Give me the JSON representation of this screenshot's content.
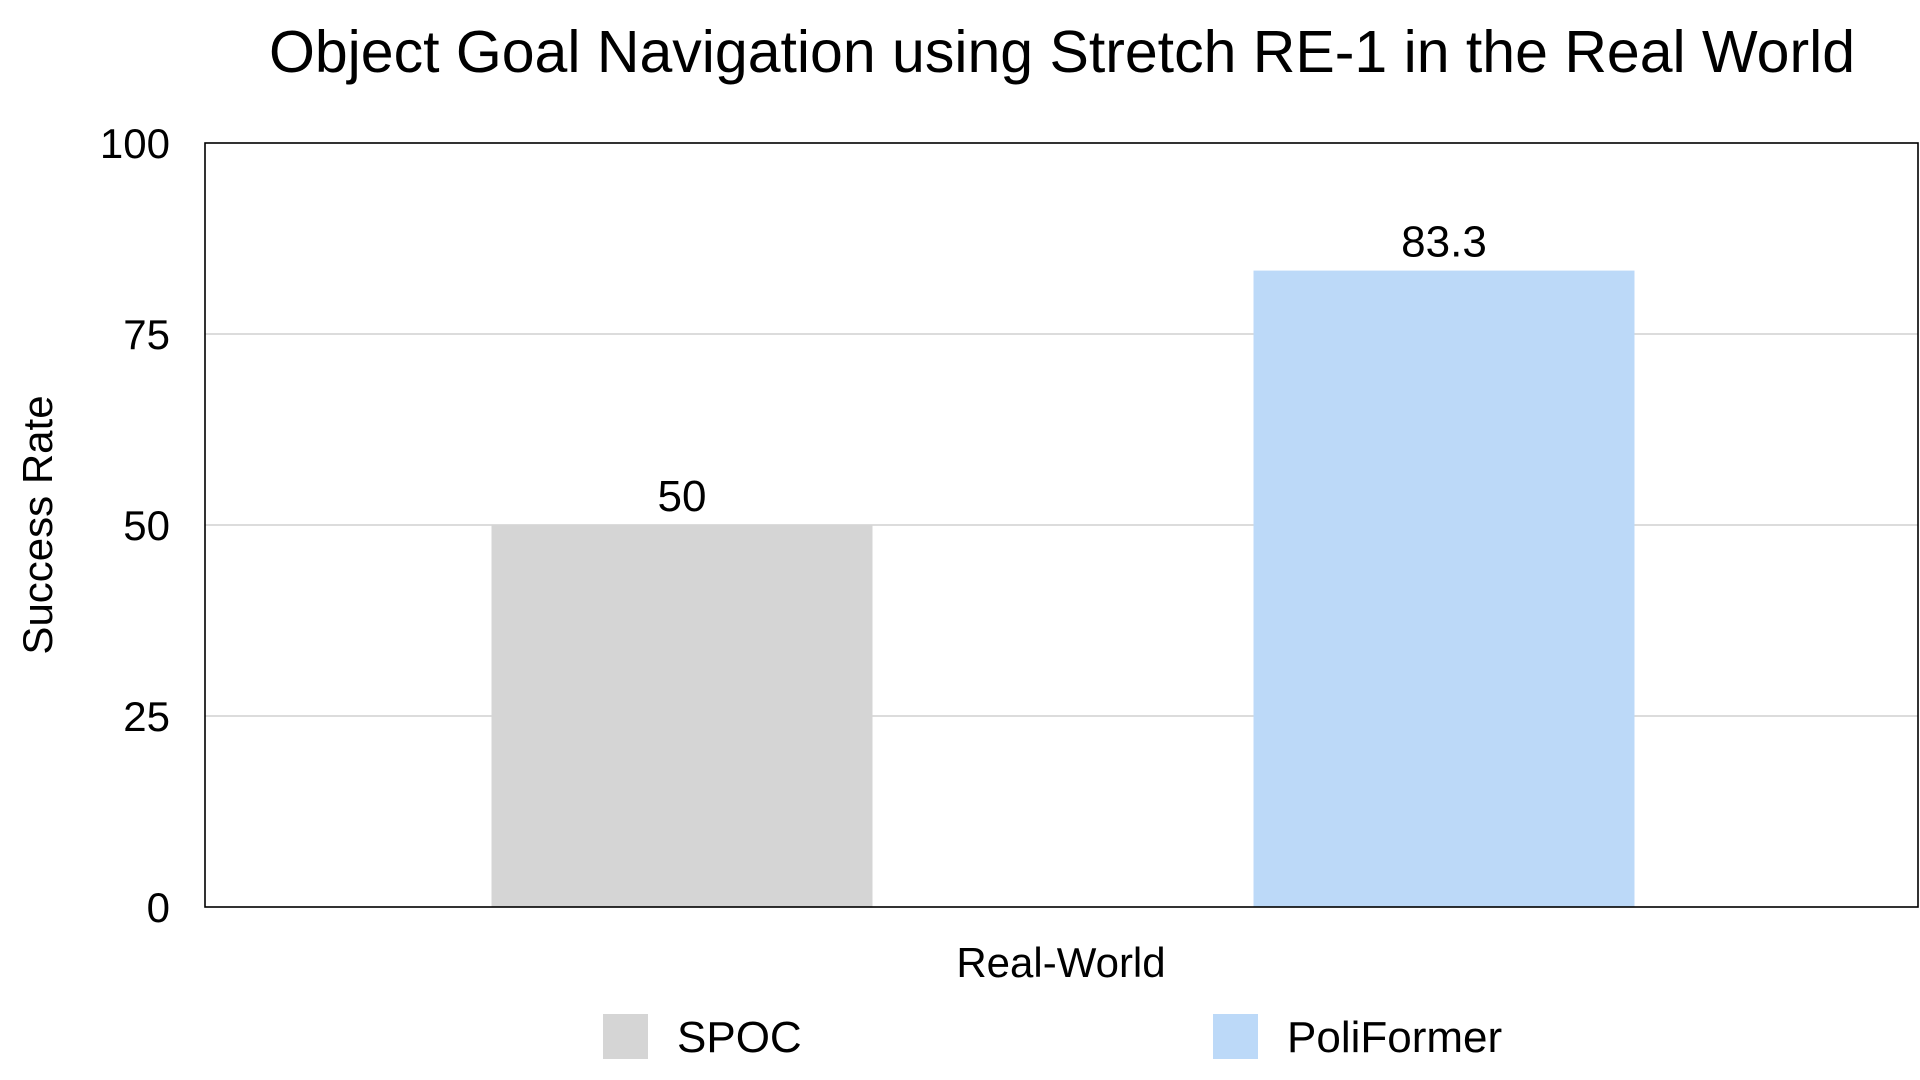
{
  "chart_data": {
    "type": "bar",
    "title": "Object Goal Navigation using Stretch RE-1 in the Real World",
    "xlabel": "Real-World",
    "ylabel": "Success Rate",
    "ylim": [
      0,
      100
    ],
    "yticks": [
      0,
      25,
      50,
      75,
      100
    ],
    "grid": true,
    "legend_position": "bottom",
    "categories": [
      "Real-World"
    ],
    "series": [
      {
        "name": "SPOC",
        "values": [
          50
        ],
        "color": "#d5d5d5"
      },
      {
        "name": "PoliFormer",
        "values": [
          83.3
        ],
        "color": "#bcd9f8"
      }
    ]
  }
}
